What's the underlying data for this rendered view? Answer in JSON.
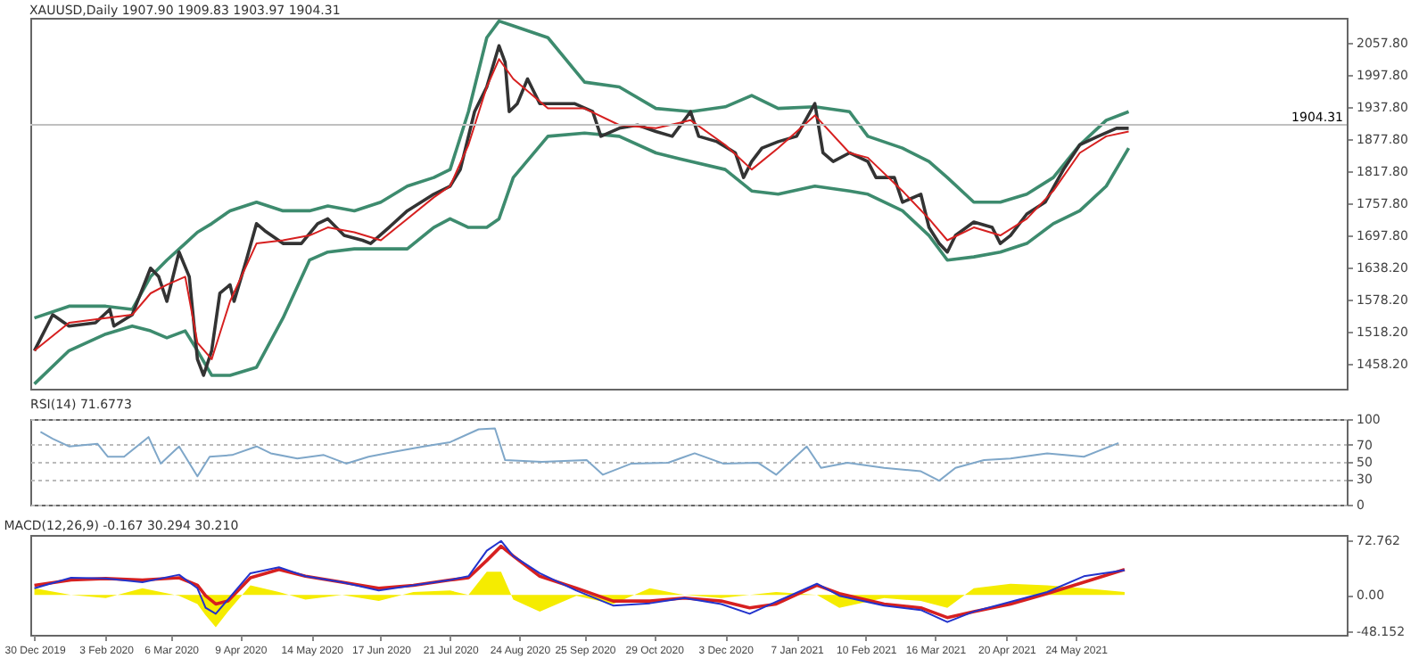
{
  "chart_data": [
    {
      "type": "line",
      "title": "XAUUSD,Daily  1907.90 1909.83 1903.97 1904.31",
      "xlim": [
        "2019-12-28",
        "2021-10-04"
      ],
      "ylim": [
        1412,
        2104
      ],
      "tick_labels": "y",
      "yticks": [
        {
          "value": 1458.2,
          "label": "1458.20"
        },
        {
          "value": 1518.2,
          "label": "1518.20"
        },
        {
          "value": 1578.2,
          "label": "1578.20"
        },
        {
          "value": 1638.2,
          "label": "1638.20"
        },
        {
          "value": 1697.8,
          "label": "1697.80"
        },
        {
          "value": 1757.8,
          "label": "1757.80"
        },
        {
          "value": 1817.8,
          "label": "1817.80"
        },
        {
          "value": 1877.8,
          "label": "1877.80"
        },
        {
          "value": 1937.8,
          "label": "1937.80"
        },
        {
          "value": 1997.8,
          "label": "1997.80"
        },
        {
          "value": 2057.8,
          "label": "2057.80"
        }
      ],
      "ref_lines": [
        {
          "axis": "y",
          "value": 1904.31,
          "label": "1904.31",
          "color": "#c0c0c0"
        }
      ],
      "x": [
        "2019-12-30",
        "2020-01-16",
        "2020-02-03",
        "2020-02-16",
        "2020-02-25",
        "2020-03-04",
        "2020-03-13",
        "2020-03-19",
        "2020-03-26",
        "2020-04-04",
        "2020-04-17",
        "2020-04-30",
        "2020-05-13",
        "2020-05-22",
        "2020-06-04",
        "2020-06-17",
        "2020-06-30",
        "2020-07-13",
        "2020-07-21",
        "2020-07-30",
        "2020-08-08",
        "2020-08-14",
        "2020-08-21",
        "2020-09-07",
        "2020-09-25",
        "2020-10-12",
        "2020-10-30",
        "2020-11-16",
        "2020-12-03",
        "2020-12-16",
        "2020-12-29",
        "2021-01-16",
        "2021-02-02",
        "2021-02-11",
        "2021-02-28",
        "2021-03-13",
        "2021-03-22",
        "2021-04-04",
        "2021-04-17",
        "2021-04-30",
        "2021-05-13",
        "2021-05-26",
        "2021-06-08",
        "2021-06-19"
      ],
      "series": [
        {
          "color": "#3d8b6e",
          "values": [
            1544,
            1566,
            1566,
            1560,
            1621,
            1652,
            1683,
            1704,
            1720,
            1744,
            1760,
            1744,
            1744,
            1753,
            1744,
            1760,
            1790,
            1806,
            1821,
            1929,
            2067,
            2098,
            2089,
            2067,
            1984,
            1975,
            1935,
            1929,
            1938,
            1959,
            1935,
            1938,
            1929,
            1883,
            1861,
            1836,
            1806,
            1760,
            1760,
            1775,
            1806,
            1867,
            1913,
            1929
          ]
        },
        {
          "color": "#3d8b6e",
          "values": [
            1421,
            1483,
            1514,
            1529,
            1520,
            1507,
            1520,
            1483,
            1437,
            1437,
            1452,
            1544,
            1652,
            1667,
            1673,
            1673,
            1673,
            1713,
            1729,
            1713,
            1713,
            1729,
            1806,
            1883,
            1889,
            1883,
            1852,
            1836,
            1821,
            1781,
            1775,
            1790,
            1781,
            1775,
            1744,
            1698,
            1652,
            1658,
            1667,
            1683,
            1720,
            1744,
            1790,
            1861
          ]
        },
        {
          "color": "#333333",
          "x": [
            "2019-12-30",
            "2020-01-08",
            "2020-01-16",
            "2020-01-29",
            "2020-02-05",
            "2020-02-07",
            "2020-02-16",
            "2020-02-25",
            "2020-02-29",
            "2020-03-04",
            "2020-03-10",
            "2020-03-15",
            "2020-03-19",
            "2020-03-22",
            "2020-03-26",
            "2020-03-30",
            "2020-04-04",
            "2020-04-06",
            "2020-04-12",
            "2020-04-17",
            "2020-04-21",
            "2020-04-30",
            "2020-05-09",
            "2020-05-17",
            "2020-05-22",
            "2020-05-30",
            "2020-06-08",
            "2020-06-12",
            "2020-06-21",
            "2020-06-30",
            "2020-07-13",
            "2020-07-21",
            "2020-07-26",
            "2020-08-02",
            "2020-08-08",
            "2020-08-14",
            "2020-08-17",
            "2020-08-19",
            "2020-08-23",
            "2020-08-28",
            "2020-09-03",
            "2020-09-12",
            "2020-09-20",
            "2020-09-29",
            "2020-10-03",
            "2020-10-12",
            "2020-10-21",
            "2020-10-30",
            "2020-11-07",
            "2020-11-16",
            "2020-11-20",
            "2020-11-29",
            "2020-12-08",
            "2020-12-12",
            "2020-12-16",
            "2020-12-21",
            "2020-12-29",
            "2021-01-07",
            "2021-01-16",
            "2021-01-20",
            "2021-01-25",
            "2021-02-02",
            "2021-02-11",
            "2021-02-15",
            "2021-02-24",
            "2021-02-28",
            "2021-03-09",
            "2021-03-13",
            "2021-03-18",
            "2021-03-22",
            "2021-03-26",
            "2021-04-04",
            "2021-04-13",
            "2021-04-17",
            "2021-04-22",
            "2021-04-30",
            "2021-05-09",
            "2021-05-18",
            "2021-05-26",
            "2021-06-04",
            "2021-06-13",
            "2021-06-19"
          ],
          "values": [
            1483,
            1550,
            1529,
            1535,
            1560,
            1529,
            1550,
            1637,
            1621,
            1575,
            1667,
            1621,
            1467,
            1437,
            1483,
            1590,
            1606,
            1575,
            1652,
            1720,
            1707,
            1683,
            1683,
            1720,
            1729,
            1698,
            1689,
            1683,
            1713,
            1744,
            1775,
            1790,
            1821,
            1929,
            1975,
            2052,
            2021,
            1929,
            1944,
            1990,
            1944,
            1944,
            1944,
            1929,
            1883,
            1898,
            1904,
            1892,
            1883,
            1929,
            1883,
            1873,
            1852,
            1806,
            1836,
            1861,
            1873,
            1883,
            1944,
            1852,
            1836,
            1852,
            1836,
            1806,
            1806,
            1760,
            1775,
            1713,
            1683,
            1667,
            1698,
            1723,
            1713,
            1683,
            1698,
            1738,
            1760,
            1821,
            1867,
            1883,
            1898,
            1898
          ]
        },
        {
          "color": "#d62020",
          "values": [
            1483,
            1535,
            1544,
            1550,
            1590,
            1606,
            1621,
            1498,
            1467,
            1575,
            1683,
            1689,
            1698,
            1713,
            1704,
            1689,
            1729,
            1769,
            1790,
            1867,
            1975,
            2027,
            1990,
            1935,
            1935,
            1904,
            1898,
            1913,
            1867,
            1821,
            1861,
            1922,
            1852,
            1843,
            1781,
            1729,
            1689,
            1713,
            1698,
            1729,
            1781,
            1852,
            1883,
            1892
          ]
        }
      ]
    },
    {
      "type": "line",
      "title": "RSI(14) 71.6773",
      "xlim": [
        "2019-12-28",
        "2021-10-04"
      ],
      "ylim": [
        0,
        100
      ],
      "yticks": [
        0,
        30,
        50,
        70,
        100
      ],
      "grid": "y",
      "tick_labels": "y",
      "x": [
        "2020-01-02",
        "2020-01-08",
        "2020-01-16",
        "2020-01-30",
        "2020-02-04",
        "2020-02-12",
        "2020-02-24",
        "2020-03-01",
        "2020-03-10",
        "2020-03-19",
        "2020-03-25",
        "2020-04-05",
        "2020-04-17",
        "2020-04-24",
        "2020-05-07",
        "2020-05-20",
        "2020-05-31",
        "2020-06-11",
        "2020-06-24",
        "2020-07-08",
        "2020-07-21",
        "2020-08-04",
        "2020-08-12",
        "2020-08-17",
        "2020-09-04",
        "2020-09-26",
        "2020-10-04",
        "2020-10-18",
        "2020-11-05",
        "2020-11-18",
        "2020-12-02",
        "2020-12-19",
        "2020-12-28",
        "2021-01-12",
        "2021-01-19",
        "2021-02-01",
        "2021-02-19",
        "2021-03-09",
        "2021-03-18",
        "2021-03-26",
        "2021-04-09",
        "2021-04-22",
        "2021-05-10",
        "2021-05-28",
        "2021-06-14"
      ],
      "series": [
        {
          "color": "#7fa7c9",
          "values": [
            85,
            77,
            68,
            71,
            56,
            56,
            79,
            48,
            68,
            33,
            56,
            58,
            68,
            60,
            54,
            58,
            48,
            56,
            62,
            68,
            73,
            88,
            89,
            52,
            50,
            52,
            35,
            48,
            49,
            60,
            48,
            49,
            35,
            68,
            43,
            49,
            43,
            39,
            28,
            43,
            52,
            54,
            60,
            56,
            72
          ]
        }
      ]
    },
    {
      "type": "line",
      "title": "MACD(12,26,9) -0.167 30.294 30.210",
      "xlim": [
        "2019-12-28",
        "2021-10-04"
      ],
      "ylim": [
        -53,
        80
      ],
      "yticks": [
        {
          "value": -48.152,
          "label": "-48.152"
        },
        {
          "value": 0,
          "label": "0.00"
        },
        {
          "value": 72.762,
          "label": "72.762"
        }
      ],
      "xticks": [
        {
          "value": "2019-12-30",
          "label": "30 Dec 2019"
        },
        {
          "value": "2020-02-03",
          "label": "3 Feb 2020"
        },
        {
          "value": "2020-03-06",
          "label": "6 Mar 2020"
        },
        {
          "value": "2020-04-09",
          "label": "9 Apr 2020"
        },
        {
          "value": "2020-05-14",
          "label": "14 May 2020"
        },
        {
          "value": "2020-06-17",
          "label": "17 Jun 2020"
        },
        {
          "value": "2020-07-21",
          "label": "21 Jul 2020"
        },
        {
          "value": "2020-08-24",
          "label": "24 Aug 2020"
        },
        {
          "value": "2020-09-25",
          "label": "25 Sep 2020"
        },
        {
          "value": "2020-10-29",
          "label": "29 Oct 2020"
        },
        {
          "value": "2020-12-03",
          "label": "3 Dec 2020"
        },
        {
          "value": "2021-01-07",
          "label": "7 Jan 2021"
        },
        {
          "value": "2021-02-10",
          "label": "10 Feb 2021"
        },
        {
          "value": "2021-03-16",
          "label": "16 Mar 2021"
        },
        {
          "value": "2021-04-20",
          "label": "20 Apr 2021"
        },
        {
          "value": "2021-05-24",
          "label": "24 May 2021"
        }
      ],
      "x": [
        "2019-12-30",
        "2020-01-17",
        "2020-02-03",
        "2020-02-21",
        "2020-03-10",
        "2020-03-19",
        "2020-03-23",
        "2020-03-28",
        "2020-04-03",
        "2020-04-14",
        "2020-04-28",
        "2020-05-11",
        "2020-05-29",
        "2020-06-16",
        "2020-07-03",
        "2020-07-21",
        "2020-07-30",
        "2020-08-08",
        "2020-08-15",
        "2020-08-21",
        "2020-09-03",
        "2020-09-21",
        "2020-10-09",
        "2020-10-27",
        "2020-11-13",
        "2020-12-01",
        "2020-12-15",
        "2020-12-28",
        "2021-01-17",
        "2021-01-28",
        "2021-02-19",
        "2021-03-09",
        "2021-03-22",
        "2021-04-04",
        "2021-04-22",
        "2021-05-10",
        "2021-05-28",
        "2021-06-17"
      ],
      "series": [
        {
          "type": "area",
          "color": "#f5ec00",
          "values": [
            9,
            0,
            -4,
            9,
            -1,
            -12,
            -27,
            -43,
            -22,
            13,
            4,
            -6,
            0,
            -8,
            4,
            6,
            0,
            31,
            31,
            -6,
            -22,
            -1,
            -12,
            9,
            0,
            -4,
            0,
            4,
            0,
            -17,
            -4,
            -8,
            -17,
            9,
            15,
            13,
            9,
            4
          ]
        },
        {
          "color": "#d62020",
          "values": [
            13,
            20,
            22,
            20,
            23,
            13,
            -1,
            -12,
            -8,
            23,
            34,
            25,
            17,
            9,
            13,
            20,
            23,
            46,
            65,
            52,
            25,
            9,
            -8,
            -8,
            -4,
            -8,
            -17,
            -12,
            13,
            2,
            -12,
            -17,
            -30,
            -22,
            -12,
            2,
            17,
            34
          ]
        },
        {
          "color": "#2233cc",
          "values": [
            9,
            23,
            22,
            17,
            27,
            9,
            -17,
            -25,
            -6,
            29,
            37,
            25,
            17,
            6,
            13,
            20,
            25,
            59,
            72,
            52,
            29,
            6,
            -14,
            -11,
            -4,
            -12,
            -25,
            -9,
            15,
            -1,
            -14,
            -20,
            -36,
            -22,
            -9,
            4,
            25,
            33
          ]
        }
      ]
    }
  ]
}
